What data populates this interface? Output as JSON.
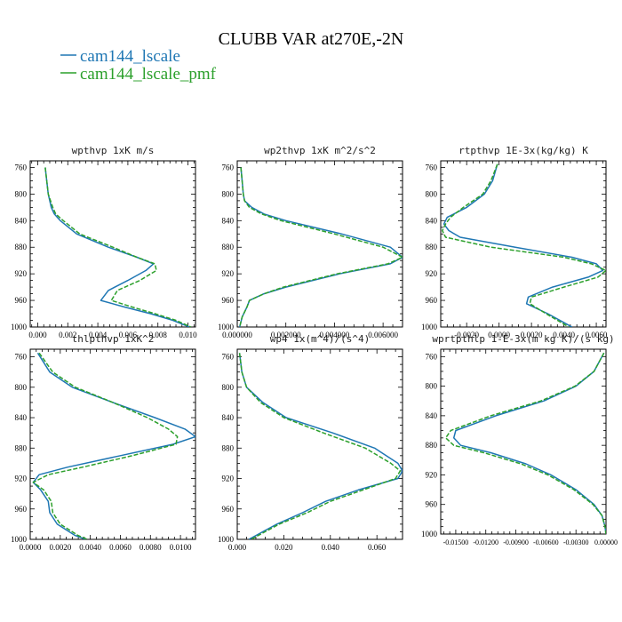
{
  "figure": {
    "title": "CLUBB VAR at270E,-2N"
  },
  "legend": {
    "entries": [
      {
        "label": "cam144_lscale",
        "color": "#1f77b4"
      },
      {
        "label": "cam144_lscale_pmf",
        "color": "#2ca02c"
      }
    ]
  },
  "chart_data": [
    {
      "type": "line",
      "title": "wpthvp 1xK m/s",
      "xlim": [
        -0.0005,
        0.0105
      ],
      "ylim": [
        1000,
        750
      ],
      "xticks": [
        "0.000",
        "0.002",
        "0.004",
        "0.006",
        "0.008",
        "0.010"
      ],
      "xtick_values": [
        0,
        0.002,
        0.004,
        0.006,
        0.008,
        0.01
      ],
      "yticks": [
        "760",
        "800",
        "840",
        "880",
        "920",
        "960",
        "1000"
      ],
      "ytick_values": [
        760,
        800,
        840,
        880,
        920,
        960,
        1000
      ],
      "series": [
        {
          "name": "cam144_lscale",
          "y": [
            760,
            780,
            800,
            820,
            830,
            840,
            860,
            880,
            895,
            905,
            915,
            930,
            945,
            960,
            970,
            980,
            990,
            1000
          ],
          "x": [
            0.0005,
            0.0006,
            0.0007,
            0.0009,
            0.0011,
            0.0015,
            0.0026,
            0.0047,
            0.0066,
            0.0077,
            0.0072,
            0.006,
            0.0047,
            0.0042,
            0.0058,
            0.0075,
            0.009,
            0.0101
          ]
        },
        {
          "name": "cam144_lscale_pmf",
          "dashed": true,
          "y": [
            760,
            780,
            800,
            820,
            830,
            840,
            860,
            880,
            895,
            905,
            915,
            930,
            945,
            960,
            970,
            980,
            990,
            1000
          ],
          "x": [
            0.0005,
            0.0006,
            0.0007,
            0.001,
            0.0012,
            0.0017,
            0.0028,
            0.005,
            0.0066,
            0.0078,
            0.0079,
            0.0068,
            0.0053,
            0.0049,
            0.0063,
            0.0078,
            0.0092,
            0.0102
          ]
        }
      ]
    },
    {
      "type": "line",
      "title": "wp2thvp 1xK m^2/s^2",
      "xlim": [
        0,
        0.0068
      ],
      "ylim": [
        1000,
        750
      ],
      "xticks": [
        "0.000000",
        "0.002000",
        "0.004000",
        "0.006000"
      ],
      "xtick_values": [
        0,
        0.002,
        0.004,
        0.006
      ],
      "yticks": [
        "760",
        "800",
        "840",
        "880",
        "920",
        "960",
        "1000"
      ],
      "ytick_values": [
        760,
        800,
        840,
        880,
        920,
        960,
        1000
      ],
      "series": [
        {
          "name": "cam144_lscale",
          "y": [
            760,
            780,
            800,
            810,
            820,
            830,
            840,
            860,
            880,
            895,
            905,
            920,
            940,
            950,
            960,
            970,
            985,
            1000
          ],
          "x": [
            0.00015,
            0.0002,
            0.00025,
            0.0003,
            0.0006,
            0.0011,
            0.002,
            0.0043,
            0.0063,
            0.0068,
            0.0063,
            0.0042,
            0.002,
            0.0011,
            0.0005,
            0.0004,
            0.0002,
            0.0001
          ]
        },
        {
          "name": "cam144_lscale_pmf",
          "dashed": true,
          "y": [
            760,
            780,
            800,
            810,
            820,
            830,
            840,
            860,
            880,
            895,
            905,
            920,
            940,
            950,
            960,
            970,
            985,
            1000
          ],
          "x": [
            0.00015,
            0.0002,
            0.00025,
            0.0003,
            0.0005,
            0.001,
            0.0018,
            0.004,
            0.006,
            0.0068,
            0.0062,
            0.0041,
            0.0019,
            0.0011,
            0.0005,
            0.0004,
            0.0002,
            0.0001
          ]
        }
      ]
    },
    {
      "type": "line",
      "title": "rtpthvp 1E-3x(kg/kg) K",
      "xlim": [
        -0.0036,
        0.0066
      ],
      "ylim": [
        1000,
        750
      ],
      "xticks": [
        "-0.0020",
        "0.0000",
        "0.0020",
        "0.0040",
        "0.0060"
      ],
      "xtick_values": [
        -0.002,
        0,
        0.002,
        0.004,
        0.006
      ],
      "yticks": [
        "760",
        "800",
        "840",
        "880",
        "920",
        "960",
        "1000"
      ],
      "ytick_values": [
        760,
        800,
        840,
        880,
        920,
        960,
        1000
      ],
      "series": [
        {
          "name": "cam144_lscale",
          "y": [
            755,
            780,
            800,
            820,
            835,
            845,
            855,
            865,
            880,
            895,
            905,
            915,
            925,
            940,
            955,
            965,
            980,
            1000
          ],
          "x": [
            -0.0001,
            -0.0004,
            -0.0009,
            -0.002,
            -0.0032,
            -0.0034,
            -0.0031,
            -0.0024,
            0.001,
            0.0045,
            0.006,
            0.0064,
            0.0055,
            0.0033,
            0.0018,
            0.0017,
            0.003,
            0.0045
          ]
        },
        {
          "name": "cam144_lscale_pmf",
          "dashed": true,
          "y": [
            755,
            780,
            800,
            820,
            835,
            845,
            855,
            865,
            880,
            895,
            905,
            915,
            925,
            940,
            955,
            965,
            980,
            1000
          ],
          "x": [
            -0.0001,
            -0.0005,
            -0.001,
            -0.0022,
            -0.003,
            -0.0033,
            -0.0035,
            -0.0033,
            -0.0005,
            0.004,
            0.0057,
            0.0066,
            0.0061,
            0.004,
            0.002,
            0.0019,
            0.0029,
            0.0043
          ]
        }
      ]
    },
    {
      "type": "line",
      "title": "thlpthvp 1xK^2",
      "xlim": [
        0,
        0.011
      ],
      "ylim": [
        1000,
        750
      ],
      "xticks": [
        "0.0000",
        "0.0020",
        "0.0040",
        "0.0060",
        "0.0080",
        "0.0100"
      ],
      "xtick_values": [
        0,
        0.002,
        0.004,
        0.006,
        0.008,
        0.01
      ],
      "yticks": [
        "760",
        "800",
        "840",
        "880",
        "920",
        "960",
        "1000"
      ],
      "ytick_values": [
        760,
        800,
        840,
        880,
        920,
        960,
        1000
      ],
      "series": [
        {
          "name": "cam144_lscale",
          "y": [
            755,
            780,
            800,
            820,
            840,
            855,
            865,
            875,
            890,
            905,
            915,
            925,
            935,
            950,
            965,
            980,
            995,
            1000
          ],
          "x": [
            0.0005,
            0.0013,
            0.0028,
            0.0055,
            0.0083,
            0.0103,
            0.011,
            0.0095,
            0.006,
            0.0025,
            0.0006,
            0.0002,
            0.0007,
            0.0012,
            0.0013,
            0.0018,
            0.003,
            0.0037
          ]
        },
        {
          "name": "cam144_lscale_pmf",
          "dashed": true,
          "y": [
            755,
            780,
            800,
            820,
            840,
            855,
            865,
            875,
            890,
            905,
            915,
            925,
            935,
            950,
            965,
            980,
            995,
            1000
          ],
          "x": [
            0.0006,
            0.0015,
            0.003,
            0.0055,
            0.0078,
            0.0092,
            0.0098,
            0.0097,
            0.0068,
            0.0035,
            0.0012,
            0.0002,
            0.0009,
            0.0014,
            0.0015,
            0.002,
            0.0032,
            0.0038
          ]
        }
      ]
    },
    {
      "type": "line",
      "title": "wp4 1x(m^4)/(s^4)",
      "xlim": [
        0,
        0.071
      ],
      "ylim": [
        1000,
        750
      ],
      "xticks": [
        "0.000",
        "0.020",
        "0.040",
        "0.060"
      ],
      "xtick_values": [
        0,
        0.02,
        0.04,
        0.06
      ],
      "yticks": [
        "760",
        "800",
        "840",
        "880",
        "920",
        "960",
        "1000"
      ],
      "ytick_values": [
        760,
        800,
        840,
        880,
        920,
        960,
        1000
      ],
      "series": [
        {
          "name": "cam144_lscale",
          "y": [
            755,
            780,
            800,
            820,
            840,
            860,
            880,
            900,
            910,
            920,
            935,
            950,
            965,
            980,
            990,
            1000
          ],
          "x": [
            0.001,
            0.002,
            0.004,
            0.011,
            0.021,
            0.041,
            0.059,
            0.069,
            0.071,
            0.069,
            0.052,
            0.038,
            0.028,
            0.017,
            0.011,
            0.005
          ]
        },
        {
          "name": "cam144_lscale_pmf",
          "dashed": true,
          "y": [
            755,
            780,
            800,
            820,
            840,
            860,
            880,
            900,
            910,
            920,
            935,
            950,
            965,
            980,
            990,
            1000
          ],
          "x": [
            0.001,
            0.002,
            0.004,
            0.01,
            0.02,
            0.037,
            0.055,
            0.066,
            0.07,
            0.068,
            0.054,
            0.04,
            0.03,
            0.018,
            0.012,
            0.006
          ]
        }
      ]
    },
    {
      "type": "line",
      "title": "wprtpthlp 1-E-3x(m kg K)/(s kg)",
      "xlim": [
        -0.0165,
        0
      ],
      "ylim": [
        1000,
        750
      ],
      "xticks": [
        "-0.01500",
        "-0.01200",
        "-0.00900",
        "-0.00600",
        "-0.00300",
        "0.00000"
      ],
      "xtick_values": [
        -0.015,
        -0.012,
        -0.009,
        -0.006,
        -0.003,
        0
      ],
      "yticks": [
        "760",
        "800",
        "840",
        "880",
        "920",
        "960",
        "1000"
      ],
      "ytick_values": [
        760,
        800,
        840,
        880,
        920,
        960,
        1000
      ],
      "series": [
        {
          "name": "cam144_lscale",
          "y": [
            755,
            780,
            800,
            820,
            840,
            860,
            870,
            880,
            890,
            905,
            920,
            940,
            960,
            975,
            990,
            1000
          ],
          "x": [
            -0.0002,
            -0.0012,
            -0.003,
            -0.0062,
            -0.011,
            -0.015,
            -0.0152,
            -0.0145,
            -0.0115,
            -0.008,
            -0.0055,
            -0.003,
            -0.0012,
            -0.0004,
            -0.0001,
            0.0
          ]
        },
        {
          "name": "cam144_lscale_pmf",
          "dashed": true,
          "y": [
            755,
            780,
            800,
            820,
            840,
            860,
            870,
            880,
            890,
            905,
            920,
            940,
            960,
            975,
            990,
            1000
          ],
          "x": [
            -0.0002,
            -0.0012,
            -0.0031,
            -0.0065,
            -0.0115,
            -0.0155,
            -0.016,
            -0.0152,
            -0.0122,
            -0.0085,
            -0.0058,
            -0.0032,
            -0.0013,
            -0.0004,
            -0.0001,
            0.0
          ]
        }
      ]
    }
  ]
}
